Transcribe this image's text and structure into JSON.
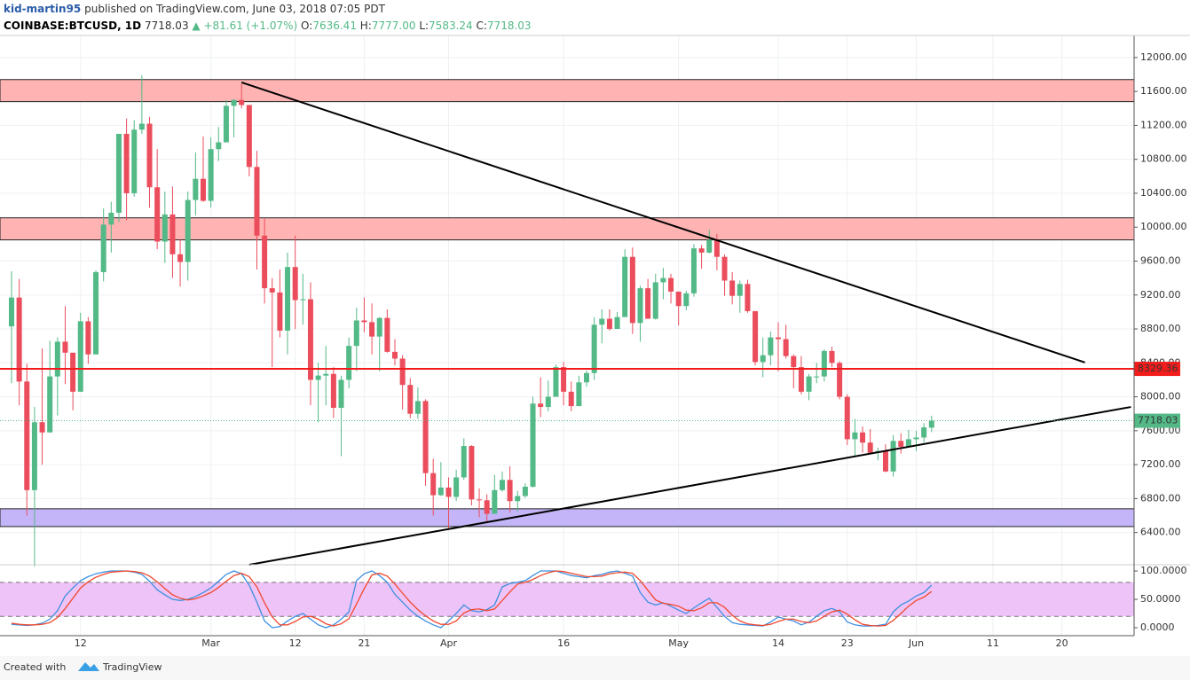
{
  "header": {
    "author": "kid-martin95",
    "published": "published on TradingView.com, June 03, 2018 07:05 PDT",
    "symbol": "COINBASE:BTCUSD, 1D",
    "last": "7718.03",
    "change": "▲ +81.61 (+1.07%)",
    "o_label": "O:",
    "open": "7636.41",
    "h_label": "H:",
    "high": "7777.00",
    "l_label": "L:",
    "low": "7583.24",
    "c_label": "C:",
    "close": "7718.03"
  },
  "footer": {
    "created": "Created with",
    "brand": "TradingView"
  },
  "chart_data": {
    "type": "candlestick",
    "categories": [
      null,
      null,
      null,
      null,
      null,
      null,
      null,
      null,
      null,
      "12",
      null,
      null,
      null,
      null,
      null,
      null,
      null,
      null,
      null,
      null,
      null,
      null,
      null,
      null,
      null,
      null,
      "Mar",
      null,
      null,
      null,
      null,
      null,
      null,
      null,
      null,
      null,
      null,
      "12",
      null,
      null,
      null,
      null,
      null,
      null,
      null,
      null,
      "21",
      null,
      null,
      null,
      null,
      null,
      null,
      null,
      null,
      null,
      null,
      "Apr",
      null,
      null,
      null,
      null,
      null,
      null,
      null,
      null,
      null,
      null,
      null,
      null,
      null,
      null,
      "16",
      null,
      null,
      null,
      null,
      null,
      null,
      null,
      null,
      null,
      null,
      null,
      null,
      null,
      null,
      "May",
      null,
      null,
      null,
      null,
      null,
      null,
      null,
      null,
      null,
      null,
      null,
      null,
      "14",
      null,
      null,
      null,
      null,
      null,
      null,
      null,
      null,
      "23",
      null,
      null,
      null,
      null,
      null,
      null,
      null,
      null,
      "Jun",
      null,
      null,
      null,
      null,
      null,
      null,
      null,
      null,
      null,
      "11",
      null,
      null,
      null,
      null,
      null,
      null,
      null,
      null,
      "20",
      null,
      null,
      null,
      null,
      null,
      null,
      null,
      null,
      null
    ],
    "ohlc": [
      [
        8830,
        9480,
        8160,
        9170
      ],
      [
        9170,
        9390,
        7900,
        8180
      ],
      [
        8180,
        8390,
        6600,
        6900
      ],
      [
        6900,
        7880,
        6000,
        7700
      ],
      [
        7700,
        8570,
        7200,
        7580
      ],
      [
        7580,
        8660,
        7580,
        8240
      ],
      [
        8240,
        8700,
        7780,
        8650
      ],
      [
        8650,
        9070,
        8150,
        8520
      ],
      [
        8520,
        8520,
        7840,
        8060
      ],
      [
        8060,
        8990,
        8060,
        8890
      ],
      [
        8890,
        8940,
        8390,
        8500
      ],
      [
        8500,
        9490,
        8500,
        9470
      ],
      [
        9470,
        10220,
        9360,
        10030
      ],
      [
        10030,
        10300,
        9700,
        10170
      ],
      [
        10170,
        11100,
        10060,
        11100
      ],
      [
        11100,
        11280,
        10080,
        10400
      ],
      [
        10400,
        11260,
        10360,
        11150
      ],
      [
        11150,
        11790,
        11100,
        11220
      ],
      [
        11220,
        11300,
        10230,
        10470
      ],
      [
        10470,
        10920,
        9740,
        9830
      ],
      [
        9830,
        10420,
        9580,
        10150
      ],
      [
        10150,
        10480,
        9400,
        9680
      ],
      [
        9680,
        9860,
        9300,
        9590
      ],
      [
        9590,
        10420,
        9370,
        10320
      ],
      [
        10320,
        10880,
        10140,
        10570
      ],
      [
        10570,
        11070,
        10300,
        10310
      ],
      [
        10310,
        11060,
        10230,
        10920
      ],
      [
        10920,
        11180,
        10780,
        11000
      ],
      [
        11000,
        11500,
        11000,
        11430
      ],
      [
        11430,
        11510,
        11060,
        11500
      ],
      [
        11500,
        11690,
        11400,
        11440
      ],
      [
        11440,
        11440,
        10600,
        10710
      ],
      [
        10710,
        10900,
        9500,
        9900
      ],
      [
        9900,
        10100,
        9100,
        9280
      ],
      [
        9280,
        9400,
        8350,
        9230
      ],
      [
        9230,
        9500,
        8700,
        8780
      ],
      [
        8780,
        9700,
        8500,
        9530
      ],
      [
        9530,
        9900,
        8800,
        9140
      ],
      [
        9140,
        9450,
        8850,
        9150
      ],
      [
        9150,
        9350,
        7900,
        8200
      ],
      [
        8200,
        8400,
        7700,
        8250
      ],
      [
        8250,
        8600,
        7900,
        8270
      ],
      [
        8270,
        8350,
        7750,
        7870
      ],
      [
        7870,
        8250,
        7300,
        8200
      ],
      [
        8200,
        8700,
        8100,
        8600
      ],
      [
        8600,
        9050,
        8300,
        8900
      ],
      [
        8900,
        9170,
        8760,
        8880
      ],
      [
        8880,
        9100,
        8500,
        8710
      ],
      [
        8710,
        8940,
        8300,
        8930
      ],
      [
        8930,
        9030,
        8520,
        8530
      ],
      [
        8530,
        8680,
        8370,
        8450
      ],
      [
        8450,
        8490,
        7850,
        8140
      ],
      [
        8140,
        8220,
        7750,
        7800
      ],
      [
        7800,
        8110,
        7740,
        7950
      ],
      [
        7950,
        7970,
        6950,
        7100
      ],
      [
        7100,
        7270,
        6600,
        6840
      ],
      [
        6840,
        7230,
        6830,
        6930
      ],
      [
        6930,
        7050,
        6430,
        6820
      ],
      [
        6820,
        7140,
        6770,
        7050
      ],
      [
        7050,
        7510,
        7020,
        7420
      ],
      [
        7420,
        7430,
        6720,
        6790
      ],
      [
        6790,
        6920,
        6580,
        6780
      ],
      [
        6780,
        6850,
        6520,
        6620
      ],
      [
        6620,
        7080,
        6620,
        6900
      ],
      [
        6900,
        7120,
        6880,
        7020
      ],
      [
        7020,
        7180,
        6640,
        6770
      ],
      [
        6770,
        6890,
        6650,
        6830
      ],
      [
        6830,
        6980,
        6810,
        6940
      ],
      [
        6940,
        8000,
        6930,
        7920
      ],
      [
        7920,
        8230,
        7760,
        7880
      ],
      [
        7880,
        8190,
        7830,
        8000
      ],
      [
        8000,
        8380,
        8000,
        8350
      ],
      [
        8350,
        8410,
        7900,
        8060
      ],
      [
        8060,
        8180,
        7830,
        7890
      ],
      [
        7890,
        8250,
        7890,
        8170
      ],
      [
        8170,
        8310,
        8120,
        8280
      ],
      [
        8280,
        8940,
        8200,
        8850
      ],
      [
        8850,
        9030,
        8630,
        8920
      ],
      [
        8920,
        9030,
        8780,
        8800
      ],
      [
        8800,
        9000,
        8800,
        8940
      ],
      [
        8940,
        9740,
        8940,
        9650
      ],
      [
        9650,
        9760,
        8740,
        8870
      ],
      [
        8870,
        9310,
        8650,
        9280
      ],
      [
        9280,
        9390,
        8920,
        8920
      ],
      [
        8920,
        9450,
        8910,
        9350
      ],
      [
        9350,
        9520,
        9150,
        9400
      ],
      [
        9400,
        9450,
        9100,
        9240
      ],
      [
        9240,
        9240,
        8840,
        9070
      ],
      [
        9070,
        9250,
        9020,
        9220
      ],
      [
        9220,
        9800,
        9180,
        9750
      ],
      [
        9750,
        9790,
        9510,
        9700
      ],
      [
        9700,
        9970,
        9690,
        9850
      ],
      [
        9850,
        9920,
        9490,
        9650
      ],
      [
        9650,
        9680,
        9190,
        9370
      ],
      [
        9370,
        9470,
        9090,
        9190
      ],
      [
        9190,
        9370,
        8990,
        9330
      ],
      [
        9330,
        9380,
        8990,
        9010
      ],
      [
        9010,
        9010,
        8370,
        8410
      ],
      [
        8410,
        8700,
        8230,
        8490
      ],
      [
        8490,
        8770,
        8370,
        8700
      ],
      [
        8700,
        8880,
        8300,
        8680
      ],
      [
        8680,
        8850,
        8450,
        8480
      ],
      [
        8480,
        8500,
        8100,
        8350
      ],
      [
        8350,
        8480,
        8030,
        8060
      ],
      [
        8060,
        8270,
        7960,
        8240
      ],
      [
        8240,
        8400,
        8160,
        8240
      ],
      [
        8240,
        8560,
        8180,
        8540
      ],
      [
        8540,
        8590,
        8350,
        8400
      ],
      [
        8400,
        8420,
        7970,
        8000
      ],
      [
        8000,
        8030,
        7430,
        7500
      ],
      [
        7500,
        7740,
        7300,
        7580
      ],
      [
        7580,
        7650,
        7340,
        7460
      ],
      [
        7460,
        7620,
        7340,
        7340
      ],
      [
        7340,
        7400,
        7250,
        7360
      ],
      [
        7360,
        7440,
        7110,
        7120
      ],
      [
        7120,
        7550,
        7060,
        7480
      ],
      [
        7480,
        7570,
        7330,
        7410
      ],
      [
        7410,
        7610,
        7400,
        7500
      ],
      [
        7500,
        7600,
        7360,
        7520
      ],
      [
        7520,
        7690,
        7460,
        7640
      ],
      [
        7636.41,
        7777,
        7583.24,
        7718.03
      ],
      null,
      null,
      null,
      null,
      null,
      null,
      null,
      null,
      null,
      null,
      null,
      null,
      null,
      null,
      null,
      null,
      null,
      null,
      null,
      null,
      null,
      null,
      null,
      null,
      null,
      null
    ],
    "up_color": "#53b987",
    "down_color": "#eb4d5c",
    "ylim": [
      6020,
      12260
    ],
    "yticks": [
      {
        "value": 6400,
        "label": "6400.00"
      },
      {
        "value": 6800,
        "label": "6800.00"
      },
      {
        "value": 7200,
        "label": "7200.00"
      },
      {
        "value": 7600,
        "label": "7600.00"
      },
      {
        "value": 8000,
        "label": "8000.00"
      },
      {
        "value": 8400,
        "label": "8400.00"
      },
      {
        "value": 8800,
        "label": "8800.00"
      },
      {
        "value": 9200,
        "label": "9200.00"
      },
      {
        "value": 9600,
        "label": "9600.00"
      },
      {
        "value": 10000,
        "label": "10000.00"
      },
      {
        "value": 10400,
        "label": "10400.00"
      },
      {
        "value": 10800,
        "label": "10800.00"
      },
      {
        "value": 11200,
        "label": "11200.00"
      },
      {
        "value": 11600,
        "label": "11600.00"
      },
      {
        "value": 12000,
        "label": "12000.00"
      }
    ],
    "grid": true,
    "zones": [
      {
        "from": 11480,
        "to": 11740,
        "color": "#ffb3b3"
      },
      {
        "from": 9850,
        "to": 10110,
        "color": "#ffb3b3"
      },
      {
        "from": 6470,
        "to": 6680,
        "color": "#c3b5f7"
      }
    ],
    "level": {
      "value": 8329.36,
      "color": "#f21c1c"
    },
    "trendlines": [
      {
        "start": [
          30,
          11707
        ],
        "end": [
          140,
          8405
        ]
      },
      {
        "start": [
          31,
          6020
        ],
        "end": [
          146,
          7880
        ]
      }
    ],
    "stochastic": {
      "ylim": [
        -14,
        111
      ],
      "yticks": [
        {
          "value": 0,
          "label": "0.0000"
        },
        {
          "value": 50,
          "label": "50.0000"
        },
        {
          "value": 100,
          "label": "100.0000"
        }
      ],
      "bands": [
        20,
        80
      ],
      "band_color": "#eec3f7",
      "series": [
        {
          "color": "#3d8fe0",
          "values": [
            6,
            5,
            4,
            5,
            8,
            15,
            30,
            56,
            70,
            83,
            90,
            95,
            98,
            100,
            100,
            100,
            98,
            94,
            82,
            67,
            58,
            50,
            48,
            50,
            55,
            62,
            70,
            82,
            94,
            100,
            95,
            75,
            45,
            12,
            0,
            2,
            12,
            20,
            25,
            15,
            5,
            0,
            5,
            15,
            28,
            83,
            95,
            100,
            92,
            80,
            59,
            45,
            31,
            20,
            12,
            5,
            0,
            12,
            25,
            40,
            30,
            28,
            32,
            40,
            72,
            78,
            80,
            83,
            92,
            100,
            100,
            100,
            96,
            92,
            90,
            88,
            92,
            94,
            98,
            100,
            96,
            91,
            62,
            45,
            40,
            44,
            38,
            31,
            25,
            35,
            44,
            52,
            36,
            20,
            9,
            6,
            5,
            4,
            3,
            10,
            19,
            15,
            12,
            5,
            10,
            20,
            30,
            34,
            28,
            10,
            5,
            3,
            3,
            4,
            6,
            28,
            40,
            47,
            56,
            62,
            75,
            null,
            null,
            null,
            null,
            null,
            null,
            null,
            null,
            null,
            null,
            null,
            null,
            null,
            null,
            null,
            null,
            null,
            null,
            null,
            null,
            null,
            null,
            null,
            null,
            null,
            null
          ]
        },
        {
          "color": "#f0492f",
          "values": [
            8,
            6,
            5,
            5,
            6,
            9,
            18,
            34,
            52,
            70,
            81,
            89,
            94,
            98,
            99,
            100,
            99,
            97,
            91,
            81,
            69,
            58,
            52,
            49,
            51,
            56,
            62,
            71,
            82,
            92,
            96,
            90,
            72,
            44,
            19,
            5,
            5,
            11,
            19,
            20,
            15,
            7,
            3,
            7,
            16,
            42,
            69,
            93,
            96,
            91,
            77,
            61,
            45,
            32,
            21,
            12,
            6,
            6,
            12,
            26,
            32,
            33,
            30,
            33,
            48,
            63,
            77,
            80,
            85,
            92,
            97,
            100,
            99,
            96,
            93,
            90,
            90,
            91,
            95,
            97,
            98,
            96,
            83,
            66,
            49,
            43,
            41,
            38,
            31,
            30,
            35,
            44,
            44,
            36,
            22,
            12,
            7,
            5,
            4,
            6,
            11,
            15,
            15,
            11,
            9,
            12,
            20,
            28,
            31,
            24,
            14,
            6,
            4,
            3,
            4,
            13,
            25,
            38,
            48,
            54,
            64,
            null,
            null,
            null,
            null,
            null,
            null,
            null,
            null,
            null,
            null,
            null,
            null,
            null,
            null,
            null,
            null,
            null,
            null,
            null,
            null,
            null,
            null,
            null,
            null,
            null,
            null
          ]
        }
      ]
    }
  }
}
